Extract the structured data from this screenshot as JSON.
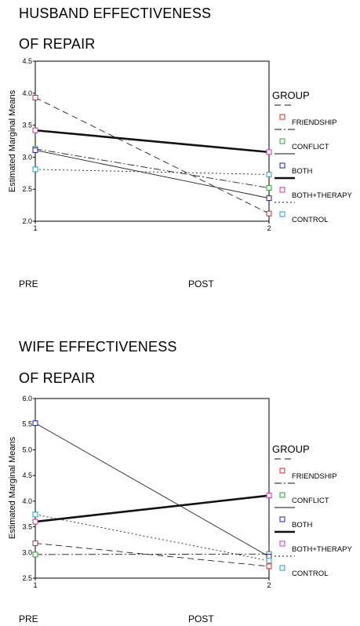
{
  "chart_data": [
    {
      "type": "line",
      "title_line1": "HUSBAND EFFECTIVENESS",
      "title_line2": "OF REPAIR",
      "ylabel": "Estimated Marginal Means",
      "x_ticks": [
        "1",
        "2"
      ],
      "x_category_labels": [
        "PRE",
        "POST"
      ],
      "ylim": [
        2.0,
        4.5
      ],
      "y_ticks": [
        "2.0",
        "2.5",
        "3.0",
        "3.5",
        "4.0",
        "4.5"
      ],
      "legend_title": "GROUP",
      "series": [
        {
          "name": "FRIENDSHIP",
          "values": [
            3.93,
            2.12
          ],
          "color": "#d62728",
          "dash": "8,5",
          "width": 0.9
        },
        {
          "name": "CONFLICT",
          "values": [
            3.13,
            2.52
          ],
          "color": "#2ca02c",
          "dash": "9,3,2,3",
          "width": 0.9
        },
        {
          "name": "BOTH",
          "values": [
            3.11,
            2.36
          ],
          "color": "#1f1fa0",
          "dash": "",
          "width": 0.9
        },
        {
          "name": "BOTH+THERAPY",
          "values": [
            3.42,
            3.08
          ],
          "color": "#cc2fa6",
          "dash": "",
          "width": 2.6
        },
        {
          "name": "CONTROL",
          "values": [
            2.81,
            2.73
          ],
          "color": "#17a2c8",
          "dash": "2,3",
          "width": 0.9
        }
      ]
    },
    {
      "type": "line",
      "title_line1": "WIFE EFFECTIVENESS",
      "title_line2": "OF REPAIR",
      "ylabel": "Estimated Marginal Means",
      "x_ticks": [
        "1",
        "2"
      ],
      "x_category_labels": [
        "PRE",
        "POST"
      ],
      "ylim": [
        2.5,
        6.0
      ],
      "y_ticks": [
        "2.5",
        "3.0",
        "3.5",
        "4.0",
        "4.5",
        "5.0",
        "5.5",
        "6.0"
      ],
      "legend_title": "GROUP",
      "series": [
        {
          "name": "FRIENDSHIP",
          "values": [
            3.18,
            2.73
          ],
          "color": "#d62728",
          "dash": "8,5",
          "width": 0.9
        },
        {
          "name": "CONFLICT",
          "values": [
            2.96,
            2.97
          ],
          "color": "#2ca02c",
          "dash": "9,3,2,3",
          "width": 0.9
        },
        {
          "name": "BOTH",
          "values": [
            5.52,
            2.92
          ],
          "color": "#1f1fa0",
          "dash": "",
          "width": 0.9
        },
        {
          "name": "BOTH+THERAPY",
          "values": [
            3.6,
            4.11
          ],
          "color": "#cc2fa6",
          "dash": "",
          "width": 2.6
        },
        {
          "name": "CONTROL",
          "values": [
            3.74,
            2.84
          ],
          "color": "#17a2c8",
          "dash": "2,3",
          "width": 0.9
        }
      ]
    }
  ]
}
